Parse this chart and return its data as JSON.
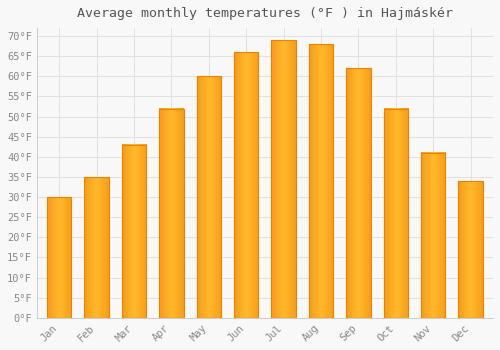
{
  "title": "Average monthly temperatures (°F ) in Hajmáskér",
  "months": [
    "Jan",
    "Feb",
    "Mar",
    "Apr",
    "May",
    "Jun",
    "Jul",
    "Aug",
    "Sep",
    "Oct",
    "Nov",
    "Dec"
  ],
  "values": [
    30,
    35,
    43,
    52,
    60,
    66,
    69,
    68,
    62,
    52,
    41,
    34
  ],
  "bar_color_center": "#FFB92E",
  "bar_color_edge": "#F08000",
  "background_color": "#F8F8F8",
  "plot_bg_color": "#F8F8F8",
  "grid_color": "#DDDDDD",
  "tick_label_color": "#888888",
  "title_color": "#555555",
  "ylim": [
    0,
    72
  ],
  "yticks": [
    0,
    5,
    10,
    15,
    20,
    25,
    30,
    35,
    40,
    45,
    50,
    55,
    60,
    65,
    70
  ],
  "title_fontsize": 9.5,
  "tick_fontsize": 7.5,
  "figsize": [
    5.0,
    3.5
  ],
  "dpi": 100
}
